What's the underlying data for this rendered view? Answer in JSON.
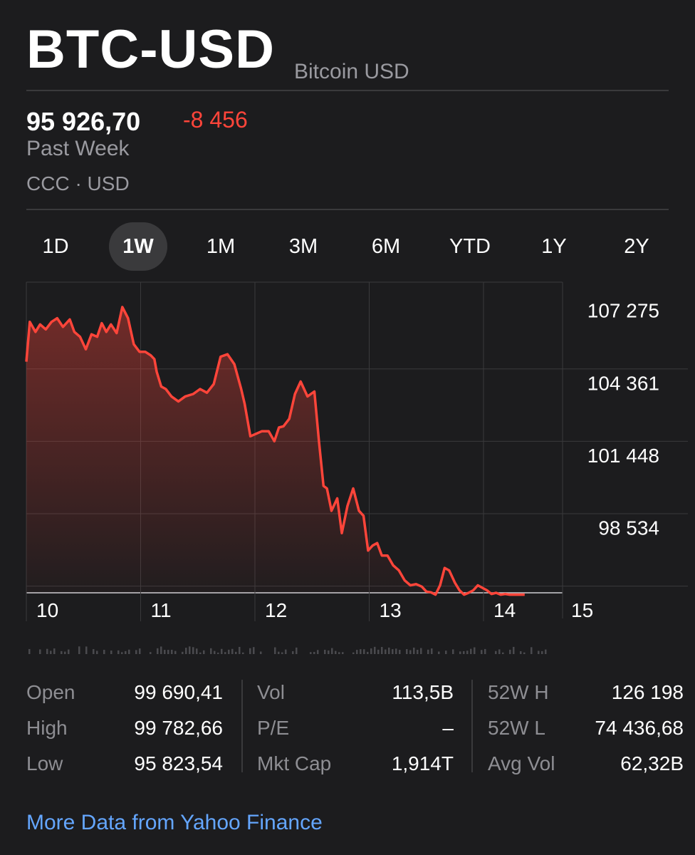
{
  "header": {
    "symbol": "BTC-USD",
    "name": "Bitcoin USD"
  },
  "quote": {
    "price": "95 926,70",
    "change": "-8 456",
    "period": "Past Week",
    "exchange": "CCC · USD"
  },
  "ranges": [
    {
      "label": "1D"
    },
    {
      "label": "1W",
      "active": true
    },
    {
      "label": "1M"
    },
    {
      "label": "3M"
    },
    {
      "label": "6M"
    },
    {
      "label": "YTD"
    },
    {
      "label": "1Y"
    },
    {
      "label": "2Y"
    }
  ],
  "colors": {
    "line": "#ff453a",
    "link": "#64a6ff",
    "muted": "#8e8e93",
    "background": "#1c1c1e"
  },
  "chart_data": {
    "type": "area",
    "y_ticks": [
      "107 275",
      "104 361",
      "101 448",
      "98 534"
    ],
    "y_tick_values": [
      107275,
      104361,
      101448,
      98534
    ],
    "x_ticks": [
      "10",
      "11",
      "12",
      "13",
      "14",
      "15"
    ],
    "x_tick_values": [
      10,
      11,
      12,
      13,
      14,
      15
    ],
    "ylim": [
      96000,
      108500
    ],
    "xlim": [
      10,
      15
    ],
    "grid": true,
    "series": [
      {
        "x": [
          10.0,
          10.03,
          10.08,
          10.12,
          10.17,
          10.22,
          10.27,
          10.32,
          10.38,
          10.42,
          10.47,
          10.52,
          10.57,
          10.62,
          10.66,
          10.7,
          10.74,
          10.79,
          10.84,
          10.89,
          10.94,
          10.99,
          11.04,
          11.09,
          11.12,
          11.14,
          11.18,
          11.22,
          11.27,
          11.33,
          11.39,
          11.46,
          11.52,
          11.58,
          11.64,
          11.7,
          11.76,
          11.82,
          11.88,
          11.91,
          11.96,
          12.01,
          12.06,
          12.12,
          12.17,
          12.21,
          12.25,
          12.3,
          12.35,
          12.4,
          12.46,
          12.52,
          12.56,
          12.6,
          12.63,
          12.67,
          12.72,
          12.76,
          12.81,
          12.86,
          12.91,
          12.95,
          12.99,
          13.03,
          13.07,
          13.11,
          13.16,
          13.21,
          13.26,
          13.31,
          13.36,
          13.41,
          13.46,
          13.5,
          13.54,
          13.58,
          13.62,
          13.66,
          13.7,
          13.75,
          13.79,
          13.83,
          13.87,
          13.91,
          13.95,
          13.99,
          14.03,
          14.07,
          14.11,
          14.15,
          14.19,
          14.23,
          14.27,
          14.32,
          14.36
        ],
        "y": [
          105300,
          106900,
          106500,
          106800,
          106600,
          106900,
          107050,
          106700,
          107000,
          106500,
          106300,
          105800,
          106400,
          106300,
          106850,
          106500,
          106800,
          106450,
          107500,
          107050,
          106000,
          105700,
          105700,
          105550,
          105400,
          104900,
          104300,
          104200,
          103900,
          103700,
          103900,
          104000,
          104200,
          104050,
          104400,
          105500,
          105600,
          105200,
          104200,
          103600,
          102300,
          102400,
          102500,
          102500,
          102100,
          102650,
          102700,
          103000,
          104000,
          104500,
          103900,
          104100,
          102100,
          100300,
          100200,
          99300,
          99800,
          98400,
          99500,
          100200,
          99300,
          99100,
          97700,
          97900,
          98000,
          97500,
          97500,
          97100,
          96900,
          96500,
          96300,
          96350,
          96250,
          96050,
          96020,
          95926.7,
          96300,
          97000,
          96900,
          96400,
          96100,
          95926.7,
          96000,
          96100,
          96300,
          96200,
          96100,
          95950,
          96000,
          95926.7,
          95950,
          95926.7,
          95926.7,
          95926.7,
          95926.7
        ]
      }
    ]
  },
  "volume_label": "",
  "stats": {
    "col1": [
      {
        "label": "Open",
        "value": "99 690,41"
      },
      {
        "label": "High",
        "value": "99 782,66"
      },
      {
        "label": "Low",
        "value": "95 823,54"
      }
    ],
    "col2": [
      {
        "label": "Vol",
        "value": "113,5B"
      },
      {
        "label": "P/E",
        "value": "–"
      },
      {
        "label": "Mkt Cap",
        "value": "1,914T"
      }
    ],
    "col3": [
      {
        "label": "52W H",
        "value": "126 198"
      },
      {
        "label": "52W L",
        "value": "74 436,68"
      },
      {
        "label": "Avg Vol",
        "value": "62,32B"
      }
    ]
  },
  "footer": {
    "link": "More Data from Yahoo Finance"
  }
}
